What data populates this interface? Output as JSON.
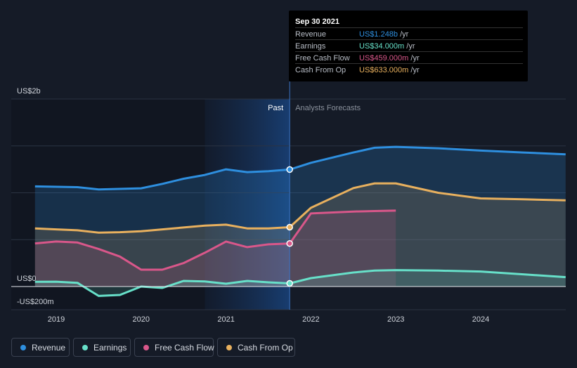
{
  "tooltip": {
    "date": "Sep 30 2021",
    "rows": [
      {
        "label": "Revenue",
        "value": "US$1.248b",
        "unit": "/yr",
        "color": "#2e8fdf"
      },
      {
        "label": "Earnings",
        "value": "US$34.000m",
        "unit": "/yr",
        "color": "#67e0c9"
      },
      {
        "label": "Free Cash Flow",
        "value": "US$459.000m",
        "unit": "/yr",
        "color": "#d9578a"
      },
      {
        "label": "Cash From Op",
        "value": "US$633.000m",
        "unit": "/yr",
        "color": "#e8b05e"
      }
    ]
  },
  "labels": {
    "past": "Past",
    "forecast": "Analysts Forecasts"
  },
  "legend": [
    {
      "name": "Revenue",
      "color": "#2e8fdf"
    },
    {
      "name": "Earnings",
      "color": "#67e0c9"
    },
    {
      "name": "Free Cash Flow",
      "color": "#d9578a"
    },
    {
      "name": "Cash From Op",
      "color": "#e8b05e"
    }
  ],
  "chart_data": {
    "type": "area",
    "y_unit": "US$ millions",
    "ylim": [
      -200,
      2000
    ],
    "ytick_labels": [
      {
        "value": 2000,
        "label": "US$2b"
      },
      {
        "value": 0,
        "label": "US$0"
      },
      {
        "value": -200,
        "label": "-US$200m"
      }
    ],
    "xlim": [
      2018.5,
      2025.0
    ],
    "xtick_labels": [
      {
        "value": 2019,
        "label": "2019"
      },
      {
        "value": 2020,
        "label": "2020"
      },
      {
        "value": 2021,
        "label": "2021"
      },
      {
        "value": 2022,
        "label": "2022"
      },
      {
        "value": 2023,
        "label": "2023"
      },
      {
        "value": 2024,
        "label": "2024"
      }
    ],
    "past_shade_start": 2020.75,
    "divider_x": 2021.75,
    "grid": true,
    "legend_position": "bottom",
    "series": [
      {
        "name": "Revenue",
        "color": "#2e8fdf",
        "points": [
          [
            2018.75,
            1068
          ],
          [
            2019.25,
            1060
          ],
          [
            2019.5,
            1036
          ],
          [
            2020.0,
            1048
          ],
          [
            2020.25,
            1095
          ],
          [
            2020.5,
            1150
          ],
          [
            2020.75,
            1190
          ],
          [
            2021.0,
            1250
          ],
          [
            2021.25,
            1220
          ],
          [
            2021.5,
            1230
          ],
          [
            2021.75,
            1248
          ],
          [
            2022.0,
            1320
          ],
          [
            2022.5,
            1430
          ],
          [
            2022.75,
            1480
          ],
          [
            2023.0,
            1490
          ],
          [
            2023.5,
            1475
          ],
          [
            2024.0,
            1450
          ],
          [
            2024.5,
            1430
          ],
          [
            2025.0,
            1410
          ]
        ]
      },
      {
        "name": "Earnings",
        "color": "#67e0c9",
        "points": [
          [
            2018.75,
            50
          ],
          [
            2019.0,
            52
          ],
          [
            2019.25,
            40
          ],
          [
            2019.5,
            -100
          ],
          [
            2019.75,
            -90
          ],
          [
            2020.0,
            0
          ],
          [
            2020.25,
            -15
          ],
          [
            2020.5,
            60
          ],
          [
            2020.75,
            55
          ],
          [
            2021.0,
            30
          ],
          [
            2021.25,
            60
          ],
          [
            2021.5,
            45
          ],
          [
            2021.75,
            34
          ],
          [
            2022.0,
            90
          ],
          [
            2022.5,
            150
          ],
          [
            2022.75,
            170
          ],
          [
            2023.0,
            175
          ],
          [
            2023.5,
            170
          ],
          [
            2024.0,
            160
          ],
          [
            2024.5,
            130
          ],
          [
            2025.0,
            100
          ]
        ]
      },
      {
        "name": "Free Cash Flow",
        "color": "#d9578a",
        "points": [
          [
            2018.75,
            460
          ],
          [
            2019.0,
            480
          ],
          [
            2019.25,
            470
          ],
          [
            2019.5,
            400
          ],
          [
            2019.75,
            320
          ],
          [
            2020.0,
            180
          ],
          [
            2020.25,
            180
          ],
          [
            2020.5,
            250
          ],
          [
            2020.75,
            360
          ],
          [
            2021.0,
            480
          ],
          [
            2021.25,
            420
          ],
          [
            2021.5,
            450
          ],
          [
            2021.75,
            459
          ],
          [
            2022.0,
            780
          ],
          [
            2022.5,
            800
          ],
          [
            2022.75,
            805
          ],
          [
            2023.0,
            810
          ]
        ]
      },
      {
        "name": "Cash From Op",
        "color": "#e8b05e",
        "points": [
          [
            2018.75,
            620
          ],
          [
            2019.0,
            610
          ],
          [
            2019.25,
            600
          ],
          [
            2019.5,
            575
          ],
          [
            2019.75,
            580
          ],
          [
            2020.0,
            590
          ],
          [
            2020.25,
            610
          ],
          [
            2020.5,
            630
          ],
          [
            2020.75,
            650
          ],
          [
            2021.0,
            660
          ],
          [
            2021.25,
            620
          ],
          [
            2021.5,
            620
          ],
          [
            2021.75,
            633
          ],
          [
            2022.0,
            840
          ],
          [
            2022.5,
            1050
          ],
          [
            2022.75,
            1100
          ],
          [
            2023.0,
            1100
          ],
          [
            2023.5,
            1000
          ],
          [
            2024.0,
            940
          ],
          [
            2024.5,
            930
          ],
          [
            2025.0,
            920
          ]
        ]
      }
    ]
  }
}
